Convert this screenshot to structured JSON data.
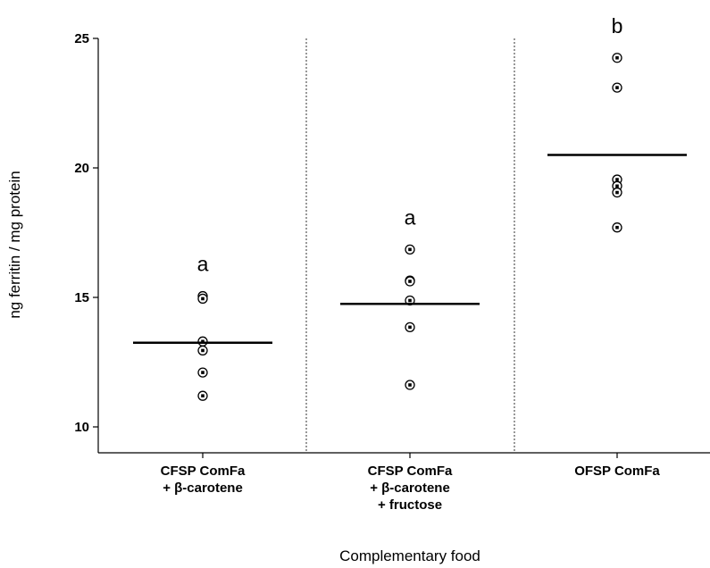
{
  "chart_data": {
    "type": "scatter",
    "xlabel": "Complementary food",
    "ylabel": "ng ferritin / mg protein",
    "ylim": [
      9,
      25.5
    ],
    "yticks": [
      10,
      15,
      20,
      25
    ],
    "grid": false,
    "legend": "none",
    "categories": [
      {
        "lines": [
          "CFSP ComFa",
          "+ β-carotene"
        ]
      },
      {
        "lines": [
          "CFSP ComFa",
          "+ β-carotene",
          "+ fructose"
        ]
      },
      {
        "lines": [
          "OFSP ComFa"
        ]
      }
    ],
    "series": [
      {
        "points": [
          15.05,
          14.95,
          13.3,
          12.95,
          12.1,
          11.2
        ],
        "mean": 13.25,
        "letter": "a"
      },
      {
        "points": [
          16.85,
          15.65,
          15.62,
          14.88,
          13.85,
          11.62
        ],
        "mean": 14.75,
        "letter": "a"
      },
      {
        "points": [
          24.25,
          23.1,
          19.55,
          19.3,
          19.05,
          17.7
        ],
        "mean": 20.5,
        "letter": "b"
      }
    ],
    "colors": {
      "marker": "#000000",
      "mean_line": "#000000",
      "axis": "#000000"
    }
  }
}
